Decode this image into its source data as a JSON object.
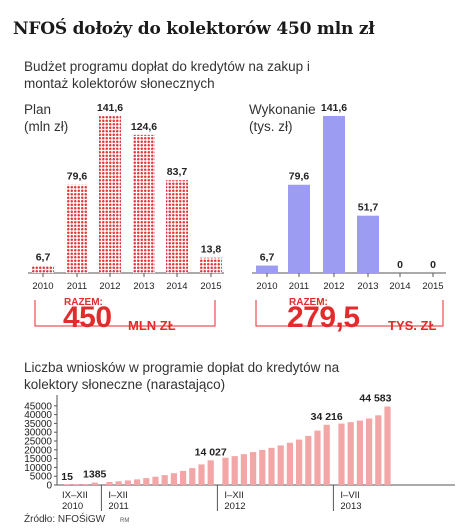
{
  "title": "NFOŚ dołoży do kolektorów 450 mln zł",
  "subtitle": "Budżet programu dopłat do kredytów na zakup i montaż kolektorów słonecznych",
  "plan_panel": {
    "label_line1": "Plan",
    "label_line2": "(mln zł)",
    "total_label": "RAZEM:",
    "total_value": "450",
    "total_unit": "MLN ZŁ"
  },
  "wykonanie_panel": {
    "label_line1": "Wykonanie",
    "label_line2": "(tys. zł)",
    "total_label": "RAZEM:",
    "total_value": "279,5",
    "total_unit": "TYS. ZŁ"
  },
  "bottom_panel": {
    "title": "Liczba wniosków w programie dopłat do kredytów na kolektory słoneczne (narastająco)"
  },
  "source": "Źródło: NFOŚiGW",
  "author": "RM",
  "colors": {
    "red": "#e32b2b",
    "red_dot": "#e23a3a",
    "purple": "#9c9cf2",
    "pink": "#f2a6a6",
    "axis": "#555555"
  },
  "chart_data": [
    {
      "type": "bar",
      "categories": [
        "2010",
        "2011",
        "2012",
        "2013",
        "2014",
        "2015"
      ],
      "values": [
        6.7,
        79.6,
        141.6,
        124.6,
        83.7,
        13.8
      ],
      "value_labels": [
        "6,7",
        "79,6",
        "141,6",
        "124,6",
        "83,7",
        "13,8"
      ],
      "ylabel": "Plan (mln zł)"
    },
    {
      "type": "bar",
      "categories": [
        "2010",
        "2011",
        "2012",
        "2013",
        "2014",
        "2015"
      ],
      "values": [
        6.7,
        79.6,
        141.6,
        51.7,
        0,
        0
      ],
      "value_labels": [
        "6,7",
        "79,6",
        "141,6",
        "51,7",
        "0",
        "0"
      ],
      "ylabel": "Wykonanie (tys. zł)"
    },
    {
      "type": "bar",
      "ylim": [
        0,
        50000
      ],
      "yticks": [
        0,
        5000,
        10000,
        15000,
        20000,
        25000,
        30000,
        35000,
        40000,
        45000
      ],
      "ytick_labels": [
        "0",
        "5000",
        "10000",
        "15000",
        "20000",
        "25000",
        "30000",
        "35000",
        "40000",
        "45000"
      ],
      "grid": false,
      "period_labels": [
        {
          "line1": "IX–XII",
          "line2": "2010"
        },
        {
          "line1": "I–XII",
          "line2": "2011"
        },
        {
          "line1": "I–XII",
          "line2": "2012"
        },
        {
          "line1": "I–VII",
          "line2": "2013"
        }
      ],
      "values": [
        15,
        180,
        520,
        1385,
        1700,
        2100,
        2600,
        3200,
        3900,
        4700,
        5600,
        6700,
        8000,
        9600,
        11700,
        14027,
        15500,
        16400,
        17500,
        18700,
        19900,
        21100,
        22500,
        24000,
        25800,
        27900,
        30900,
        34216,
        34900,
        35700,
        36600,
        37800,
        39600,
        44583
      ],
      "annotations": [
        {
          "index": 0,
          "text": "15"
        },
        {
          "index": 3,
          "text": "1385"
        },
        {
          "index": 15,
          "text": "14 027"
        },
        {
          "index": 27,
          "text": "34 216"
        },
        {
          "index": 33,
          "text": "44 583"
        }
      ]
    }
  ]
}
